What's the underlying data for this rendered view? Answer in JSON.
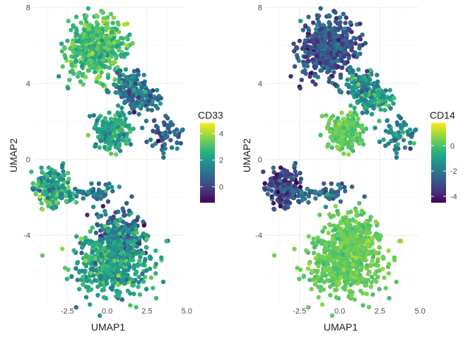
{
  "chart_data": [
    {
      "type": "scatter",
      "xlabel": "UMAP1",
      "ylabel": "UMAP2",
      "xlim": [
        -4.6,
        4.9
      ],
      "ylim": [
        -7.6,
        8.1
      ],
      "x_ticks": [
        -2.5,
        0.0,
        2.5,
        5.0
      ],
      "x_tick_labels": [
        "-2.5",
        "0.0",
        "2.5",
        "5.0"
      ],
      "y_ticks": [
        8,
        4,
        0,
        -4
      ],
      "y_tick_labels": [
        "8",
        "4",
        "0",
        "-4"
      ],
      "grid": true,
      "legend": {
        "title": "CD33",
        "placement": "right",
        "range": [
          -1.2,
          4.8
        ],
        "ticks": [
          4,
          2,
          0
        ],
        "tick_labels": [
          "4",
          "2",
          "0"
        ],
        "colormap": "viridis"
      },
      "clusters": [
        {
          "center": [
            -0.7,
            5.9
          ],
          "spread": [
            0.9,
            0.75
          ],
          "n": 520,
          "value_mean": 3.0,
          "value_sd": 0.55
        },
        {
          "center": [
            1.4,
            3.8
          ],
          "spread": [
            0.55,
            0.45
          ],
          "n": 120,
          "value_mean": 1.2,
          "value_sd": 0.7
        },
        {
          "center": [
            2.3,
            3.2
          ],
          "spread": [
            0.6,
            0.35
          ],
          "n": 90,
          "value_mean": 1.0,
          "value_sd": 0.8
        },
        {
          "center": [
            0.4,
            1.5
          ],
          "spread": [
            0.5,
            0.5
          ],
          "n": 200,
          "value_mean": 2.3,
          "value_sd": 0.6
        },
        {
          "center": [
            3.7,
            1.3
          ],
          "spread": [
            0.55,
            0.4
          ],
          "n": 60,
          "value_mean": 0.7,
          "value_sd": 0.6
        },
        {
          "center": [
            -3.4,
            -1.5
          ],
          "spread": [
            0.6,
            0.5
          ],
          "n": 200,
          "value_mean": 2.4,
          "value_sd": 0.7
        },
        {
          "center": [
            -1.2,
            -1.7
          ],
          "spread": [
            1.2,
            0.25
          ],
          "n": 55,
          "value_mean": 1.3,
          "value_sd": 0.6
        },
        {
          "center": [
            0.9,
            -4.1
          ],
          "spread": [
            0.8,
            0.7
          ],
          "n": 260,
          "value_mean": 0.8,
          "value_sd": 0.8
        },
        {
          "center": [
            0.2,
            -5.5
          ],
          "spread": [
            1.15,
            0.85
          ],
          "n": 500,
          "value_mean": 2.2,
          "value_sd": 0.65
        }
      ]
    },
    {
      "type": "scatter",
      "xlabel": "UMAP1",
      "ylabel": "UMAP2",
      "xlim": [
        -4.6,
        4.9
      ],
      "ylim": [
        -7.6,
        8.1
      ],
      "x_ticks": [
        -2.5,
        0.0,
        2.5,
        5.0
      ],
      "x_tick_labels": [
        "-2.5",
        "0.0",
        "2.5",
        "5.0"
      ],
      "y_ticks": [
        8,
        4,
        0,
        -4
      ],
      "y_tick_labels": [
        "8",
        "4",
        "0",
        "-4"
      ],
      "grid": true,
      "legend": {
        "title": "CD14",
        "placement": "right",
        "range": [
          -4.5,
          1.8
        ],
        "ticks": [
          0,
          -2,
          -4
        ],
        "tick_labels": [
          "0",
          "-2",
          "-4"
        ],
        "colormap": "viridis"
      },
      "clusters": [
        {
          "center": [
            -0.7,
            5.9
          ],
          "spread": [
            0.9,
            0.75
          ],
          "n": 520,
          "value_mean": -2.9,
          "value_sd": 0.7
        },
        {
          "center": [
            1.4,
            3.8
          ],
          "spread": [
            0.55,
            0.45
          ],
          "n": 120,
          "value_mean": -1.4,
          "value_sd": 0.8
        },
        {
          "center": [
            2.3,
            3.2
          ],
          "spread": [
            0.6,
            0.35
          ],
          "n": 90,
          "value_mean": -0.9,
          "value_sd": 0.8
        },
        {
          "center": [
            0.4,
            1.5
          ],
          "spread": [
            0.5,
            0.5
          ],
          "n": 200,
          "value_mean": 0.2,
          "value_sd": 0.3
        },
        {
          "center": [
            3.7,
            1.3
          ],
          "spread": [
            0.55,
            0.4
          ],
          "n": 60,
          "value_mean": -1.6,
          "value_sd": 0.7
        },
        {
          "center": [
            -3.4,
            -1.5
          ],
          "spread": [
            0.6,
            0.5
          ],
          "n": 200,
          "value_mean": -3.0,
          "value_sd": 0.7
        },
        {
          "center": [
            -1.2,
            -1.7
          ],
          "spread": [
            1.2,
            0.25
          ],
          "n": 55,
          "value_mean": -2.4,
          "value_sd": 0.7
        },
        {
          "center": [
            0.9,
            -4.1
          ],
          "spread": [
            0.8,
            0.7
          ],
          "n": 260,
          "value_mean": 0.3,
          "value_sd": 0.25
        },
        {
          "center": [
            0.2,
            -5.5
          ],
          "spread": [
            1.15,
            0.85
          ],
          "n": 500,
          "value_mean": 0.3,
          "value_sd": 0.25
        }
      ]
    }
  ]
}
